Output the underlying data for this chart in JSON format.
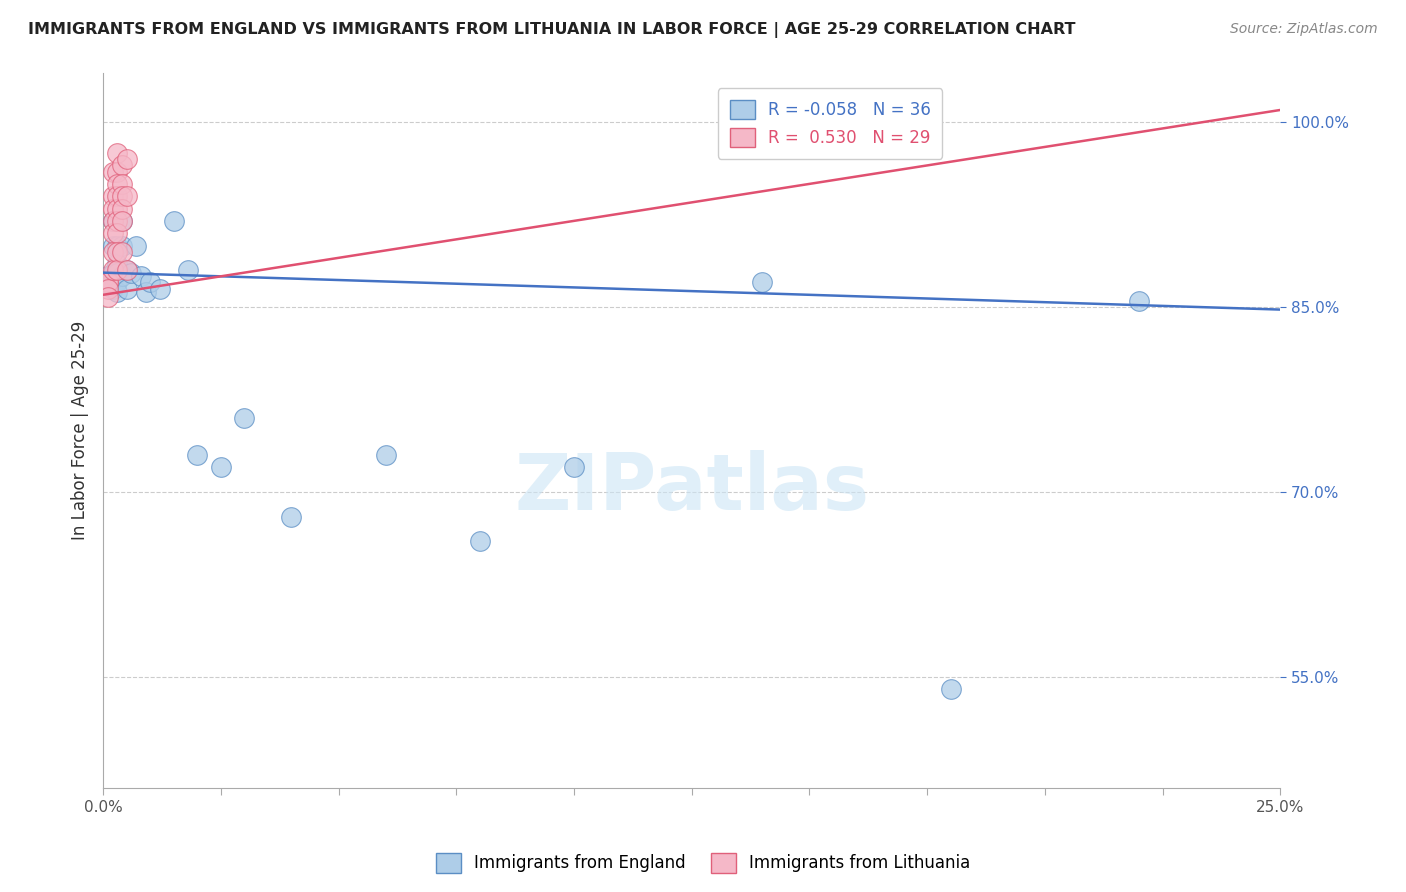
{
  "title": "IMMIGRANTS FROM ENGLAND VS IMMIGRANTS FROM LITHUANIA IN LABOR FORCE | AGE 25-29 CORRELATION CHART",
  "source": "Source: ZipAtlas.com",
  "ylabel": "In Labor Force | Age 25-29",
  "xlim": [
    0.0,
    0.25
  ],
  "ylim": [
    0.46,
    1.04
  ],
  "xticks": [
    0.0,
    0.025,
    0.05,
    0.075,
    0.1,
    0.125,
    0.15,
    0.175,
    0.2,
    0.225,
    0.25
  ],
  "ytick_positions": [
    0.55,
    0.7,
    0.85,
    1.0
  ],
  "ytick_labels": [
    "55.0%",
    "70.0%",
    "85.0%",
    "100.0%"
  ],
  "england_R": -0.058,
  "england_N": 36,
  "lithuania_R": 0.53,
  "lithuania_N": 29,
  "england_color": "#aecde8",
  "england_edge_color": "#5b8ec4",
  "england_line_color": "#4472c4",
  "lithuania_color": "#f5b8c8",
  "lithuania_edge_color": "#e0607a",
  "lithuania_line_color": "#e05070",
  "england_x": [
    0.001,
    0.001,
    0.001,
    0.002,
    0.002,
    0.002,
    0.002,
    0.002,
    0.003,
    0.003,
    0.003,
    0.003,
    0.003,
    0.004,
    0.004,
    0.004,
    0.005,
    0.005,
    0.006,
    0.007,
    0.008,
    0.009,
    0.01,
    0.012,
    0.015,
    0.018,
    0.02,
    0.025,
    0.03,
    0.04,
    0.06,
    0.08,
    0.1,
    0.14,
    0.18,
    0.22
  ],
  "england_y": [
    0.875,
    0.872,
    0.868,
    0.92,
    0.9,
    0.878,
    0.872,
    0.865,
    0.9,
    0.885,
    0.878,
    0.87,
    0.862,
    0.92,
    0.9,
    0.875,
    0.88,
    0.865,
    0.878,
    0.9,
    0.875,
    0.862,
    0.87,
    0.865,
    0.92,
    0.88,
    0.73,
    0.72,
    0.76,
    0.68,
    0.73,
    0.66,
    0.72,
    0.87,
    0.54,
    0.855
  ],
  "lithuania_x": [
    0.001,
    0.001,
    0.001,
    0.001,
    0.002,
    0.002,
    0.002,
    0.002,
    0.002,
    0.002,
    0.002,
    0.003,
    0.003,
    0.003,
    0.003,
    0.003,
    0.003,
    0.003,
    0.003,
    0.003,
    0.004,
    0.004,
    0.004,
    0.004,
    0.004,
    0.004,
    0.005,
    0.005,
    0.005
  ],
  "lithuania_y": [
    0.87,
    0.87,
    0.865,
    0.858,
    0.96,
    0.94,
    0.93,
    0.92,
    0.91,
    0.895,
    0.88,
    0.975,
    0.96,
    0.95,
    0.94,
    0.93,
    0.92,
    0.91,
    0.895,
    0.88,
    0.965,
    0.95,
    0.94,
    0.93,
    0.92,
    0.895,
    0.97,
    0.94,
    0.88
  ],
  "watermark": "ZIPatlas",
  "eng_line_x0": 0.0,
  "eng_line_x1": 0.25,
  "eng_line_y0": 0.878,
  "eng_line_y1": 0.848,
  "lit_line_x0": 0.0,
  "lit_line_x1": 0.25,
  "lit_line_y0": 0.86,
  "lit_line_y1": 1.01
}
